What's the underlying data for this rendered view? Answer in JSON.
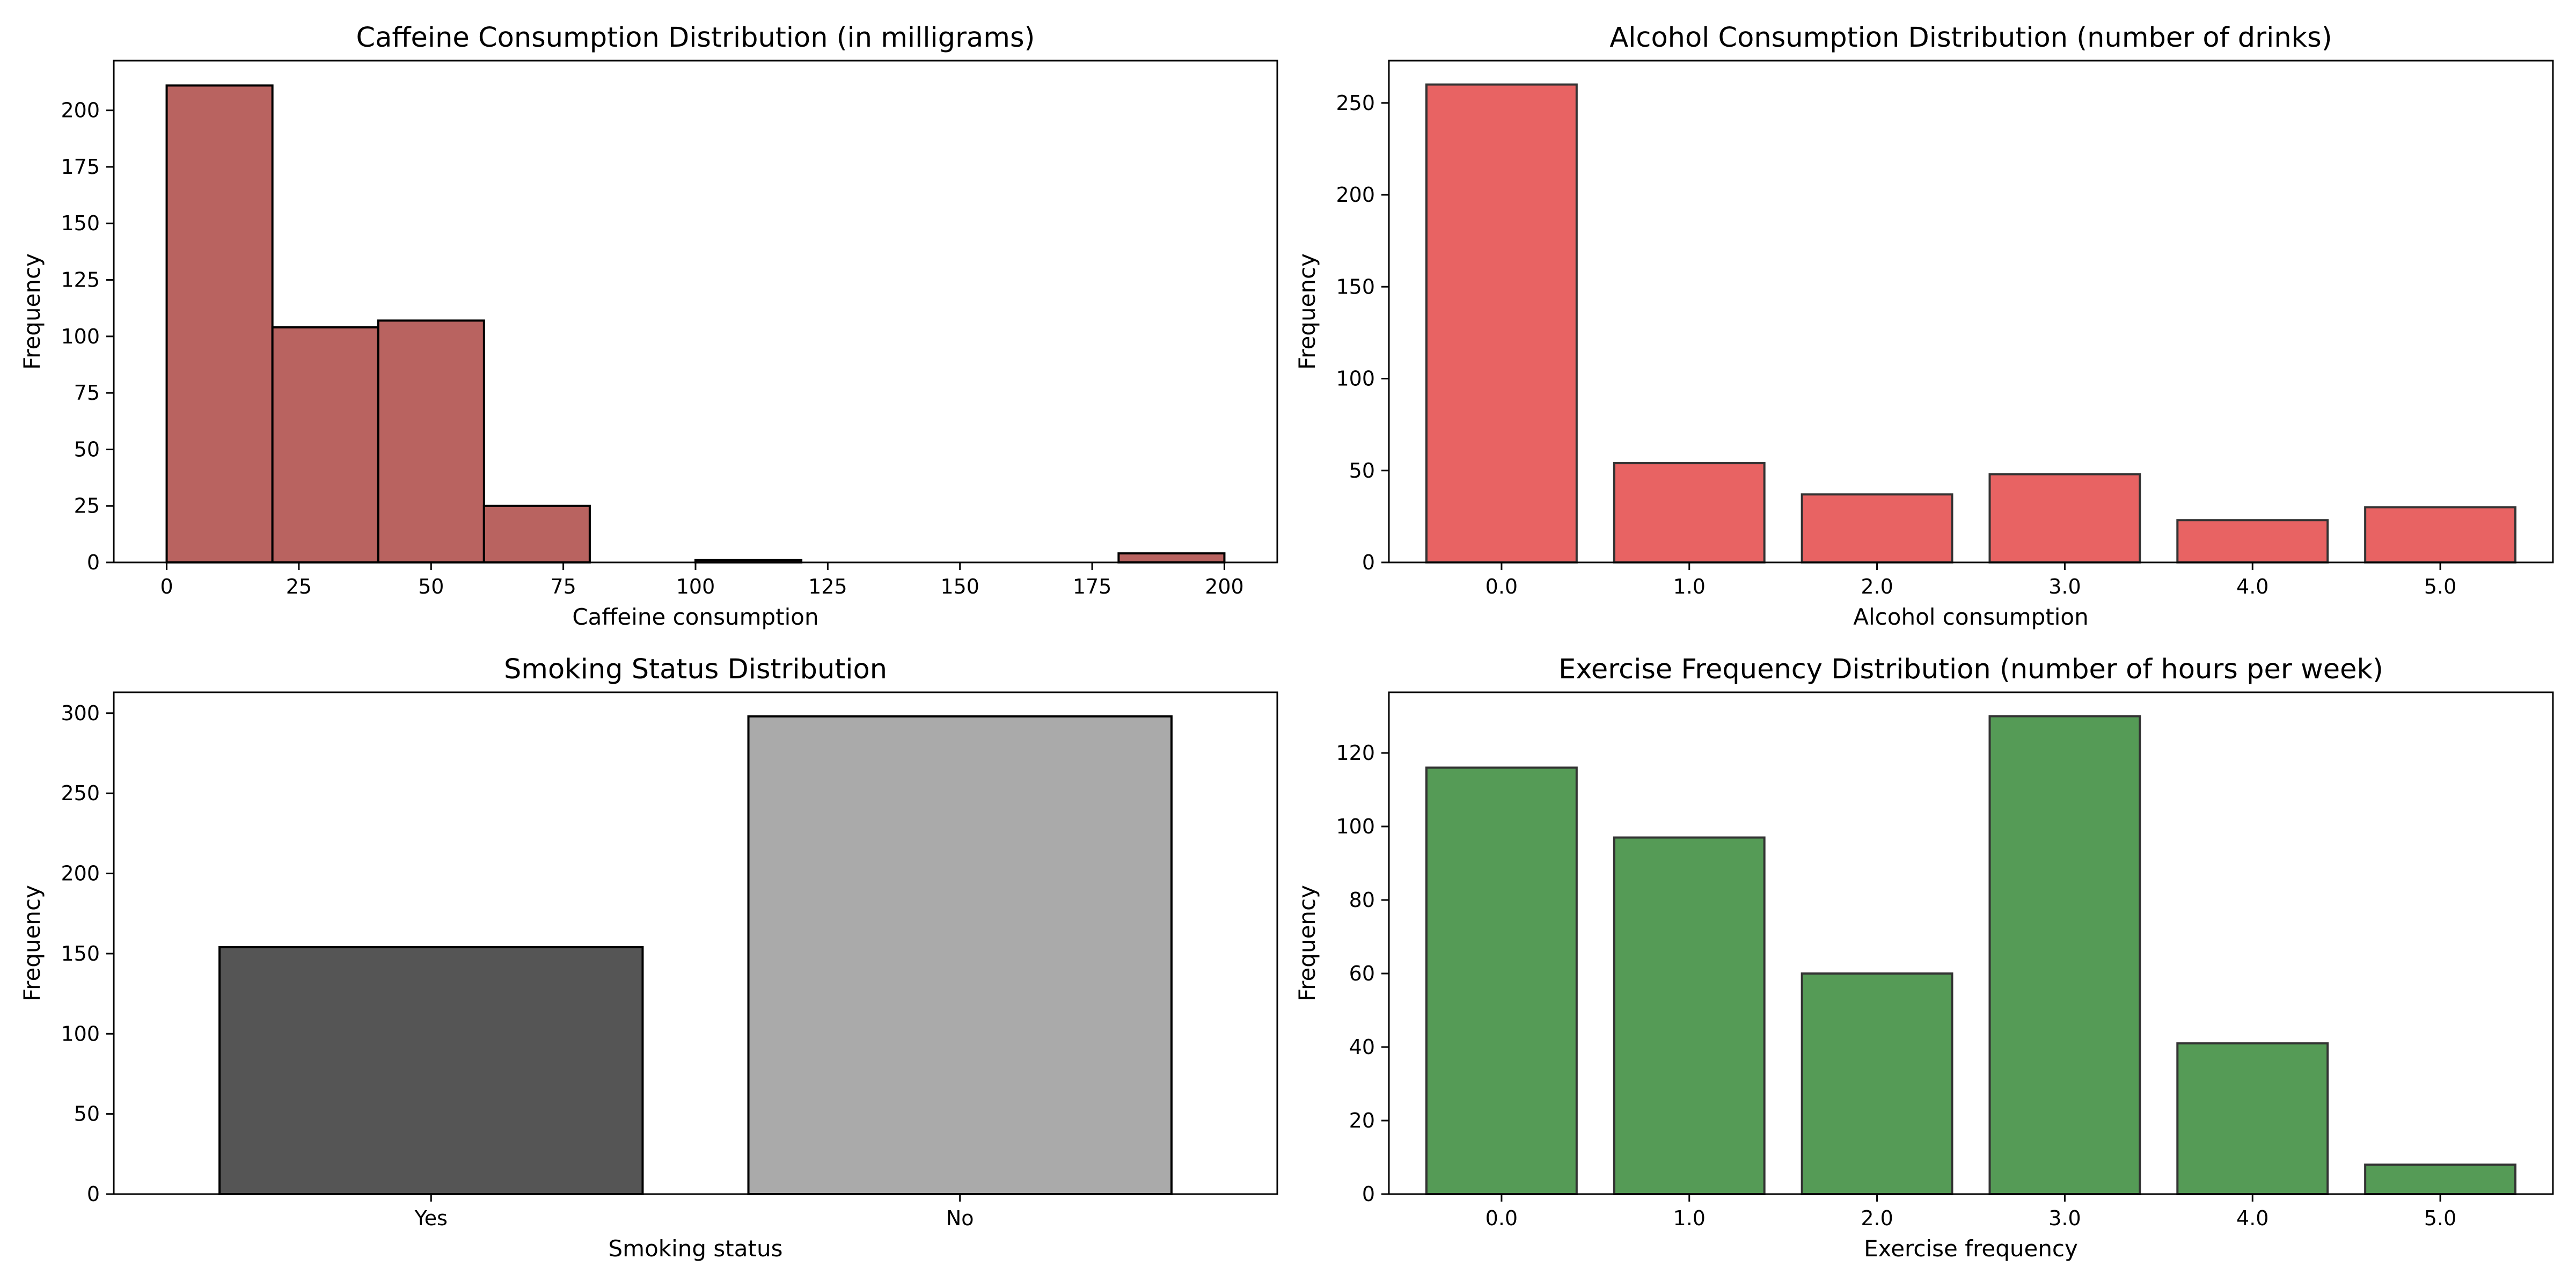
{
  "chart_data": [
    {
      "type": "bar",
      "title": "Caffeine Consumption Distribution (in milligrams)",
      "xlabel": "Caffeine consumption",
      "ylabel": "Frequency",
      "xlim": [
        -10,
        210
      ],
      "ylim": [
        0,
        222
      ],
      "xticks": [
        0,
        25,
        50,
        75,
        100,
        125,
        150,
        175,
        200
      ],
      "yticks": [
        0,
        25,
        50,
        75,
        100,
        125,
        150,
        175,
        200
      ],
      "bins": [
        {
          "x0": 0,
          "x1": 20,
          "value": 211
        },
        {
          "x0": 20,
          "x1": 40,
          "value": 104
        },
        {
          "x0": 40,
          "x1": 60,
          "value": 107
        },
        {
          "x0": 60,
          "x1": 80,
          "value": 25
        },
        {
          "x0": 80,
          "x1": 100,
          "value": 0
        },
        {
          "x0": 100,
          "x1": 120,
          "value": 1
        },
        {
          "x0": 120,
          "x1": 140,
          "value": 0
        },
        {
          "x0": 140,
          "x1": 160,
          "value": 0
        },
        {
          "x0": 160,
          "x1": 180,
          "value": 0
        },
        {
          "x0": 180,
          "x1": 200,
          "value": 4
        }
      ],
      "color": "#b96360",
      "edge": "#000000"
    },
    {
      "type": "bar",
      "title": "Alcohol Consumption Distribution (number of drinks)",
      "xlabel": "Alcohol consumption",
      "ylabel": "Frequency",
      "ylim": [
        0,
        273
      ],
      "yticks": [
        0,
        50,
        100,
        150,
        200,
        250
      ],
      "categories": [
        "0.0",
        "1.0",
        "2.0",
        "3.0",
        "4.0",
        "5.0"
      ],
      "values": [
        260,
        54,
        37,
        48,
        23,
        30
      ],
      "colors": [
        "#e86363",
        "#e86363",
        "#e86363",
        "#e86363",
        "#e86363",
        "#e86363"
      ],
      "edge": "#333333"
    },
    {
      "type": "bar",
      "title": "Smoking Status Distribution",
      "xlabel": "Smoking status",
      "ylabel": "Frequency",
      "ylim": [
        0,
        313
      ],
      "yticks": [
        0,
        50,
        100,
        150,
        200,
        250,
        300
      ],
      "categories": [
        "Yes",
        "No"
      ],
      "values": [
        154,
        298
      ],
      "colors": [
        "#555555",
        "#aaaaaa"
      ],
      "edge": "#000000"
    },
    {
      "type": "bar",
      "title": "Exercise Frequency Distribution (number of hours per week)",
      "xlabel": "Exercise frequency",
      "ylabel": "Frequency",
      "ylim": [
        0,
        136.5
      ],
      "yticks": [
        0,
        20,
        40,
        60,
        80,
        100,
        120
      ],
      "categories": [
        "0.0",
        "1.0",
        "2.0",
        "3.0",
        "4.0",
        "5.0"
      ],
      "values": [
        116,
        97,
        60,
        130,
        41,
        8
      ],
      "colors": [
        "#559b56",
        "#559b56",
        "#559b56",
        "#559b56",
        "#559b56",
        "#559b56"
      ],
      "edge": "#333333"
    }
  ]
}
